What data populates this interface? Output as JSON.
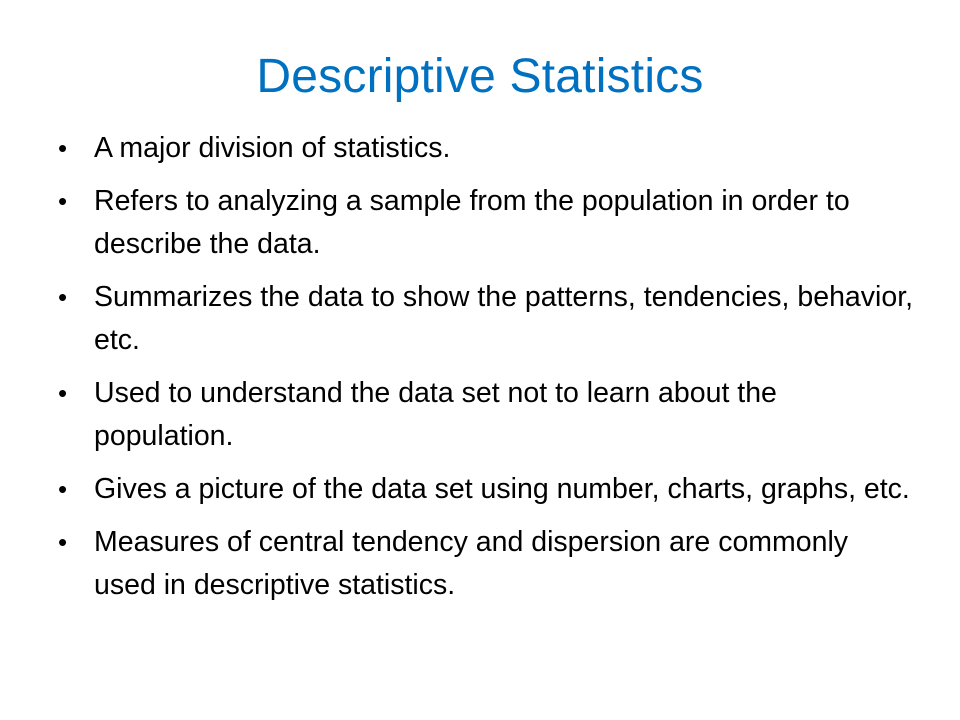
{
  "slide": {
    "title": "Descriptive Statistics",
    "title_color": "#0070c0",
    "bullet_glyph": "•",
    "bullets": [
      {
        "text": "A major division of statistics."
      },
      {
        "text": "Refers to analyzing a sample from the population in order to describe the data."
      },
      {
        "text": "Summarizes the data to show the patterns, tendencies, behavior, etc."
      },
      {
        "text": "Used to understand the data set not to learn about the population."
      },
      {
        "text": "Gives a picture of the data set using number, charts, graphs, etc."
      },
      {
        "text": "Measures of central tendency and dispersion are commonly used in descriptive statistics."
      }
    ]
  }
}
